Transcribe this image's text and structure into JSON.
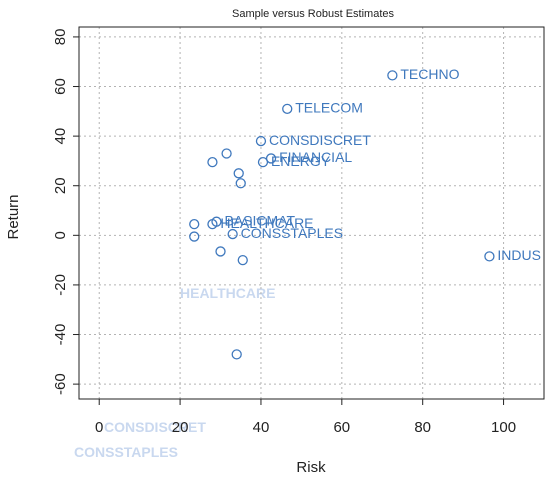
{
  "chart_data": {
    "type": "scatter",
    "title": "Sample versus Robust Estimates",
    "xlabel": "Risk",
    "ylabel": "Return",
    "xlim": [
      -5,
      110
    ],
    "ylim": [
      -66,
      84
    ],
    "x_ticks": [
      "0",
      "20",
      "40",
      "60",
      "80",
      "100"
    ],
    "y_ticks": [
      "-60",
      "-40",
      "-20",
      "0",
      "20",
      "40",
      "60",
      "80"
    ],
    "grid": true,
    "point_color": "#3f78bd",
    "ghost_color": "#c9d8ef",
    "labeled_points": [
      {
        "label": "TECHNO",
        "x": 72.5,
        "y": 64.5
      },
      {
        "label": "TELECOM",
        "x": 46.5,
        "y": 51
      },
      {
        "label": "CONSDISCRET",
        "x": 40,
        "y": 38
      },
      {
        "label": "FINANCIAL",
        "x": 42.5,
        "y": 31
      },
      {
        "label": "ENERGY",
        "x": 40.5,
        "y": 29.5
      },
      {
        "label": "BASICMAT",
        "x": 29,
        "y": 5.5
      },
      {
        "label": "HEALTHCARE",
        "x": 28,
        "y": 4.5
      },
      {
        "label": "CONSSTAPLES",
        "x": 33,
        "y": 0.5
      },
      {
        "label": "INDUS",
        "x": 96.5,
        "y": -8.5
      }
    ],
    "unlabeled_points": [
      {
        "x": 28,
        "y": 29.5
      },
      {
        "x": 31.5,
        "y": 33
      },
      {
        "x": 34.5,
        "y": 25
      },
      {
        "x": 35,
        "y": 21
      },
      {
        "x": 23.5,
        "y": 4.5
      },
      {
        "x": 23.5,
        "y": -0.5
      },
      {
        "x": 30,
        "y": -6.5
      },
      {
        "x": 35.5,
        "y": -10
      },
      {
        "x": 34,
        "y": -48
      }
    ],
    "ghost_labels": [
      "CONSDISCRET",
      "HEALTHCARE",
      "CONSSTAPLES"
    ]
  }
}
